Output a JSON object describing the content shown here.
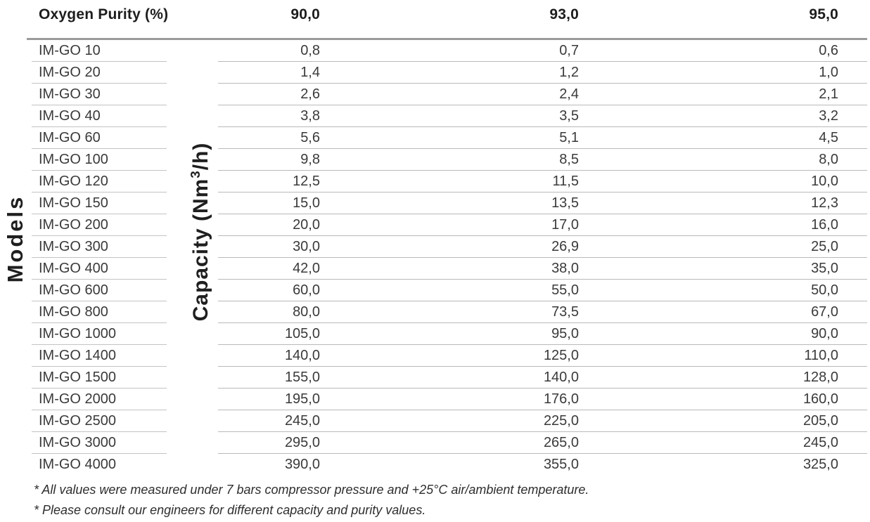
{
  "table": {
    "corner_header": "Oxygen Purity (%)",
    "purity_columns": [
      "90,0",
      "93,0",
      "95,0"
    ],
    "models_axis_label": "Models",
    "capacity_axis_label": {
      "prefix": "Capacity (Nm",
      "sup": "3",
      "suffix": "/h)"
    },
    "capacity_unit": "Nm3/h",
    "rows": [
      {
        "model": "IM-GO 10",
        "values": [
          "0,8",
          "0,7",
          "0,6"
        ]
      },
      {
        "model": "IM-GO 20",
        "values": [
          "1,4",
          "1,2",
          "1,0"
        ]
      },
      {
        "model": "IM-GO 30",
        "values": [
          "2,6",
          "2,4",
          "2,1"
        ]
      },
      {
        "model": "IM-GO 40",
        "values": [
          "3,8",
          "3,5",
          "3,2"
        ]
      },
      {
        "model": "IM-GO 60",
        "values": [
          "5,6",
          "5,1",
          "4,5"
        ]
      },
      {
        "model": "IM-GO 100",
        "values": [
          "9,8",
          "8,5",
          "8,0"
        ]
      },
      {
        "model": "IM-GO 120",
        "values": [
          "12,5",
          "11,5",
          "10,0"
        ]
      },
      {
        "model": "IM-GO 150",
        "values": [
          "15,0",
          "13,5",
          "12,3"
        ]
      },
      {
        "model": "IM-GO 200",
        "values": [
          "20,0",
          "17,0",
          "16,0"
        ]
      },
      {
        "model": "IM-GO 300",
        "values": [
          "30,0",
          "26,9",
          "25,0"
        ]
      },
      {
        "model": "IM-GO 400",
        "values": [
          "42,0",
          "38,0",
          "35,0"
        ]
      },
      {
        "model": "IM-GO 600",
        "values": [
          "60,0",
          "55,0",
          "50,0"
        ]
      },
      {
        "model": "IM-GO 800",
        "values": [
          "80,0",
          "73,5",
          "67,0"
        ]
      },
      {
        "model": "IM-GO 1000",
        "values": [
          "105,0",
          "95,0",
          "90,0"
        ]
      },
      {
        "model": "IM-GO 1400",
        "values": [
          "140,0",
          "125,0",
          "110,0"
        ]
      },
      {
        "model": "IM-GO 1500",
        "values": [
          "155,0",
          "140,0",
          "128,0"
        ]
      },
      {
        "model": "IM-GO 2000",
        "values": [
          "195,0",
          "176,0",
          "160,0"
        ]
      },
      {
        "model": "IM-GO 2500",
        "values": [
          "245,0",
          "225,0",
          "205,0"
        ]
      },
      {
        "model": "IM-GO 3000",
        "values": [
          "295,0",
          "265,0",
          "245,0"
        ]
      },
      {
        "model": "IM-GO 4000",
        "values": [
          "390,0",
          "355,0",
          "325,0"
        ]
      }
    ]
  },
  "footnotes": [
    "* All values were measured under 7 bars compressor pressure and +25°C air/ambient temperature.",
    "* Please consult our engineers for different capacity and purity values."
  ],
  "colors": {
    "background": "#ffffff",
    "text": "#3a3a3a",
    "header_text": "#1d1d1d",
    "row_line": "#b9b9b9",
    "model_line": "#c3c3c3",
    "header_line": "#9b9b9b"
  }
}
